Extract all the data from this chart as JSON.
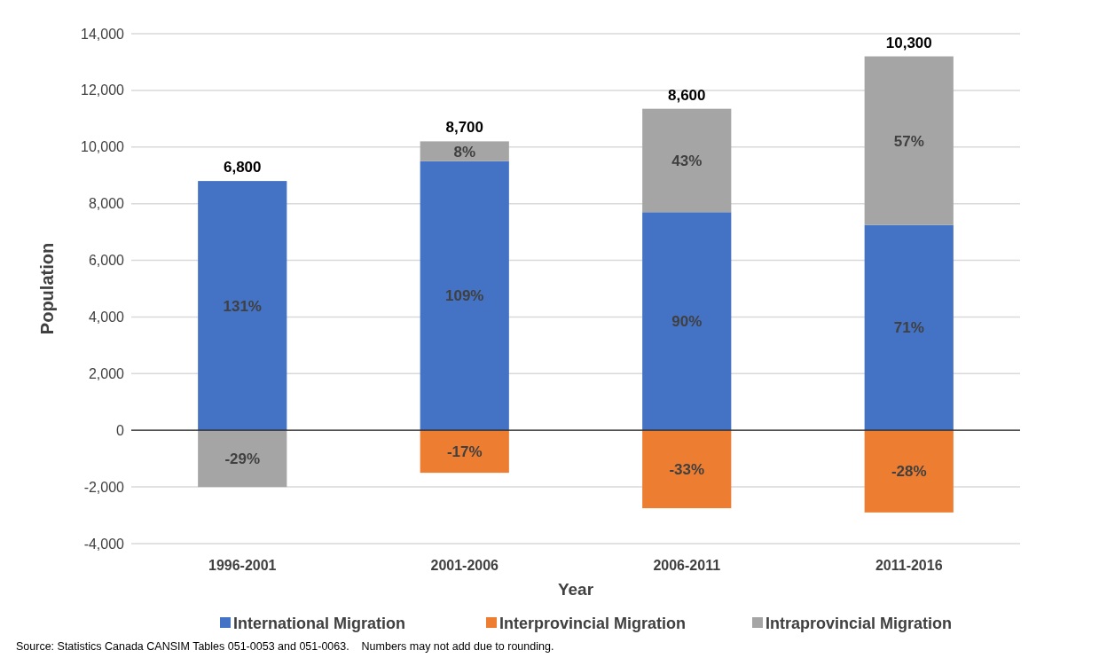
{
  "chart_data": {
    "type": "bar",
    "stacked": true,
    "xlabel": "Year",
    "ylabel": "Population",
    "categories": [
      "1996-2001",
      "2001-2006",
      "2006-2011",
      "2011-2016"
    ],
    "series": [
      {
        "name": "International Migration",
        "color": "#4472c4",
        "values": [
          8800,
          9500,
          7700,
          7250
        ]
      },
      {
        "name": "Interprovincial Migration",
        "color": "#ed7d31",
        "values": [
          null,
          -1500,
          -2750,
          -2900
        ]
      },
      {
        "name": "Intraprovincial Migration",
        "color": "#a5a5a5",
        "values": [
          -2000,
          700,
          3650,
          5950
        ]
      }
    ],
    "totals": [
      "6,800",
      "8,700",
      "8,600",
      "10,300"
    ],
    "ylim": [
      -4000,
      14000
    ],
    "yticks": [
      {
        "value": -4000,
        "label": "-4,000"
      },
      {
        "value": -2000,
        "label": "-2,000"
      },
      0,
      {
        "value": 2000,
        "label": "2,000"
      },
      {
        "value": 4000,
        "label": "4,000"
      },
      {
        "value": 6000,
        "label": "6,000"
      },
      {
        "value": 8000,
        "label": "8,000"
      },
      {
        "value": 10000,
        "label": "10,000"
      },
      {
        "value": 12000,
        "label": "12,000"
      },
      {
        "value": 14000,
        "label": "14,000"
      }
    ],
    "grid": "y",
    "legend": "bottom",
    "annotations": [
      "131%",
      "109%",
      "90%",
      "71%",
      "-17%",
      "-33%",
      "-28%",
      "-29%",
      "8%",
      "43%",
      "57%",
      "Source: Statistics Canada CANSIM Tables 051-0053 and 051-0063.    Numbers may not add due to rounding."
    ]
  }
}
